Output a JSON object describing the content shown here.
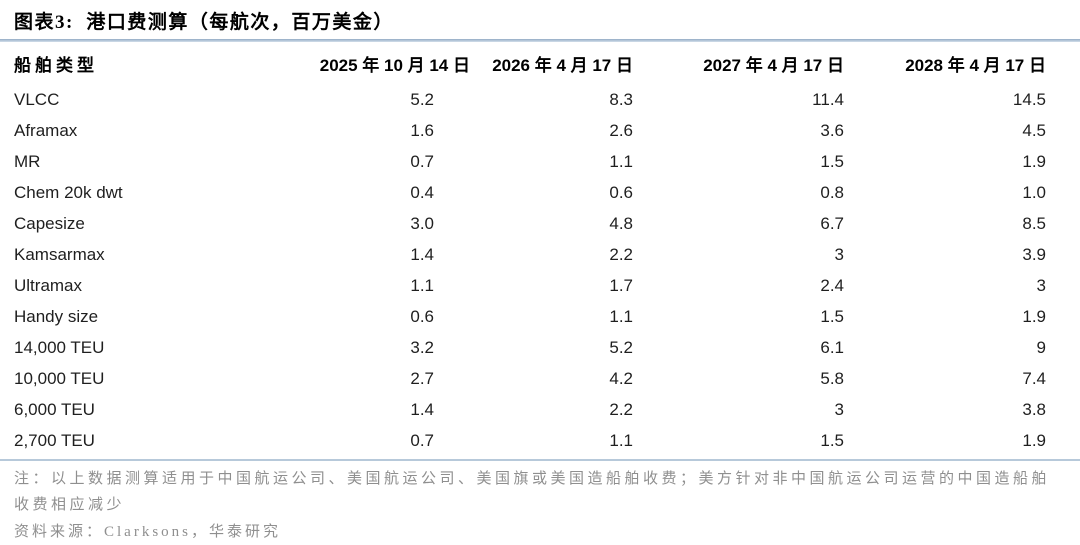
{
  "figure": {
    "title": "图表3:  港口费测算（每航次，百万美金）"
  },
  "table": {
    "columns": [
      "船舶类型",
      "2025 年 10 月 14 日",
      "2026 年 4 月 17 日",
      "2027 年 4 月 17 日",
      "2028 年 4 月 17 日"
    ],
    "rows": [
      {
        "type": "VLCC",
        "values": [
          "5.2",
          "8.3",
          "11.4",
          "14.5"
        ]
      },
      {
        "type": "Aframax",
        "values": [
          "1.6",
          "2.6",
          "3.6",
          "4.5"
        ]
      },
      {
        "type": "MR",
        "values": [
          "0.7",
          "1.1",
          "1.5",
          "1.9"
        ]
      },
      {
        "type": "Chem 20k dwt",
        "values": [
          "0.4",
          "0.6",
          "0.8",
          "1.0"
        ]
      },
      {
        "type": "Capesize",
        "values": [
          "3.0",
          "4.8",
          "6.7",
          "8.5"
        ]
      },
      {
        "type": "Kamsarmax",
        "values": [
          "1.4",
          "2.2",
          "3",
          "3.9"
        ]
      },
      {
        "type": "Ultramax",
        "values": [
          "1.1",
          "1.7",
          "2.4",
          "3"
        ]
      },
      {
        "type": "Handy size",
        "values": [
          "0.6",
          "1.1",
          "1.5",
          "1.9"
        ]
      },
      {
        "type": "14,000 TEU",
        "values": [
          "3.2",
          "5.2",
          "6.1",
          "9"
        ]
      },
      {
        "type": "10,000 TEU",
        "values": [
          "2.7",
          "4.2",
          "5.8",
          "7.4"
        ]
      },
      {
        "type": "6,000 TEU",
        "values": [
          "1.4",
          "2.2",
          "3",
          "3.8"
        ]
      },
      {
        "type": "2,700 TEU",
        "values": [
          "0.7",
          "1.1",
          "1.5",
          "1.9"
        ]
      }
    ]
  },
  "notes": {
    "note": "注：以上数据测算适用于中国航运公司、美国航运公司、美国旗或美国造船舶收费；美方针对非中国航运公司运营的中国造船舶收费相应减少",
    "source": "资料来源：Clarksons，华泰研究"
  },
  "colors": {
    "title_text": "#000000",
    "table_text": "#1f1f1f",
    "top_rule": "#93abc5",
    "bottom_rule": "#b7c9da",
    "note_text": "#8f8f8f",
    "background": "#ffffff"
  },
  "chart_data": {
    "type": "table",
    "title": "港口费测算（每航次，百万美金）",
    "unit": "百万美金/航次",
    "columns": [
      "船舶类型",
      "2025年10月14日",
      "2026年4月17日",
      "2027年4月17日",
      "2028年4月17日"
    ],
    "rows": [
      [
        "VLCC",
        5.2,
        8.3,
        11.4,
        14.5
      ],
      [
        "Aframax",
        1.6,
        2.6,
        3.6,
        4.5
      ],
      [
        "MR",
        0.7,
        1.1,
        1.5,
        1.9
      ],
      [
        "Chem 20k dwt",
        0.4,
        0.6,
        0.8,
        1.0
      ],
      [
        "Capesize",
        3.0,
        4.8,
        6.7,
        8.5
      ],
      [
        "Kamsarmax",
        1.4,
        2.2,
        3.0,
        3.9
      ],
      [
        "Ultramax",
        1.1,
        1.7,
        2.4,
        3.0
      ],
      [
        "Handy size",
        0.6,
        1.1,
        1.5,
        1.9
      ],
      [
        "14,000 TEU",
        3.2,
        5.2,
        6.1,
        9.0
      ],
      [
        "10,000 TEU",
        2.7,
        4.2,
        5.8,
        7.4
      ],
      [
        "6,000 TEU",
        1.4,
        2.2,
        3.0,
        3.8
      ],
      [
        "2,700 TEU",
        0.7,
        1.1,
        1.5,
        1.9
      ]
    ]
  }
}
